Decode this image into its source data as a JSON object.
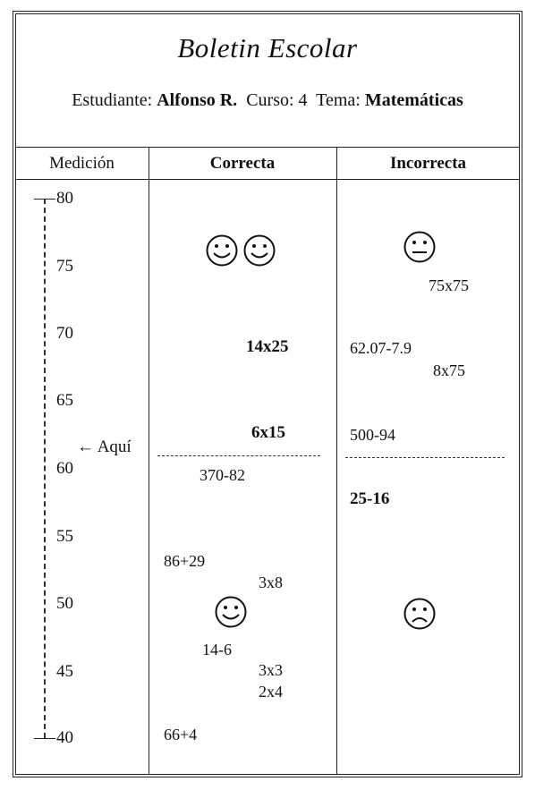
{
  "title": "Boletin Escolar",
  "info": {
    "student_label": "Estudiante:",
    "student": "Alfonso R.",
    "course_label": "Curso:",
    "course": "4",
    "topic_label": "Tema:",
    "topic": "Matemáticas"
  },
  "columns": [
    "Medición",
    "Correcta",
    "Incorrecta"
  ],
  "scale": {
    "ticks": [
      "80",
      "75",
      "70",
      "65",
      "60",
      "55",
      "50",
      "45",
      "40"
    ],
    "marker": "← Aquí"
  },
  "correct": {
    "items": [
      "14x25",
      "6x15",
      "370-82",
      "86+29",
      "3x8",
      "14-6",
      "3x3",
      "2x4",
      "66+4"
    ],
    "faces": [
      "happy-face-icon",
      "happy-face-icon",
      "happy-face-icon"
    ]
  },
  "incorrect": {
    "items": [
      "75x75",
      "62.07-7.9",
      "8x75",
      "500-94",
      "25-16"
    ],
    "faces": [
      "neutral-face-icon",
      "sad-face-icon"
    ]
  }
}
